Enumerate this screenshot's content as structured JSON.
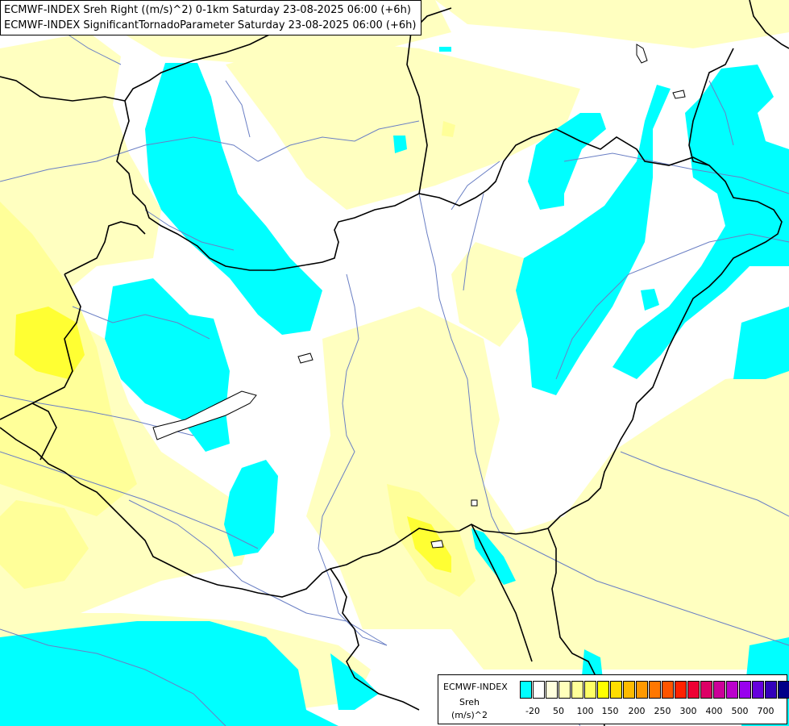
{
  "titles": {
    "line1": "ECMWF-INDEX Sreh Right ((m/s)^2) 0-1km Saturday 23-08-2025 06:00 (+6h)",
    "line2": "ECMWF-INDEX SignificantTornadoParameter Saturday 23-08-2025 06:00 (+6h)"
  },
  "colors": {
    "background": "#ffffff",
    "pale_yellow": "#ffffc0",
    "light_yellow": "#ffff99",
    "yellow": "#ffff33",
    "cyan": "#00ffff",
    "border": "#000000",
    "river": "#6a7fc4"
  },
  "legend": {
    "title": "ECMWF-INDEX",
    "sub1": "Sreh",
    "sub2": "(m/s)^2",
    "swatches": [
      "#00ffff",
      "#ffffff",
      "#ffffdd",
      "#ffffbb",
      "#ffff99",
      "#ffff66",
      "#ffff00",
      "#ffdd00",
      "#ffbb00",
      "#ff9900",
      "#ff7700",
      "#ff5500",
      "#ff2200",
      "#ee0033",
      "#dd0066",
      "#cc0099",
      "#bb00cc",
      "#9900ee",
      "#6600dd",
      "#3300bb",
      "#000088"
    ],
    "ticks": [
      "-20",
      "50",
      "100",
      "150",
      "200",
      "250",
      "300",
      "400",
      "500",
      "700"
    ]
  }
}
